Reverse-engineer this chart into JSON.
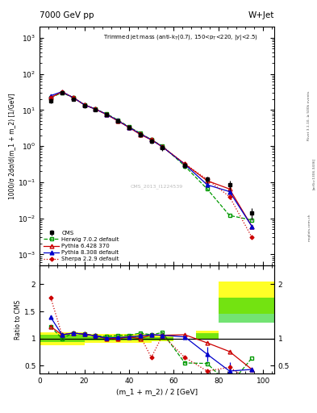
{
  "title_top": "7000 GeV pp",
  "title_right": "W+Jet",
  "annotation": "Trimmed jet mass (anti-k$_T$(0.7), 150<p$_T$<220, |y|<2.5)",
  "cms_label": "CMS_2013_I1224539",
  "rivet_label": "Rivet 3.1.10, ≥ 500k events",
  "arxiv_label": "[arXiv:1306.3436]",
  "mcplots_label": "mcplots.cern.ch",
  "ylabel_main": "1000/σ 2dσ/d(m_1 + m_2) [1/GeV]",
  "ylabel_ratio": "Ratio to CMS",
  "xlabel": "(m_1 + m_2) / 2 [GeV]",
  "xlim": [
    0,
    105
  ],
  "ylim_main": [
    0.0005,
    2000.0
  ],
  "ylim_ratio": [
    0.35,
    2.35
  ],
  "x_cms": [
    5,
    10,
    15,
    20,
    25,
    30,
    35,
    40,
    45,
    50,
    55,
    65,
    75,
    85,
    95
  ],
  "y_cms": [
    18,
    30,
    20,
    13,
    10,
    7.5,
    5.0,
    3.2,
    2.1,
    1.4,
    0.9,
    0.3,
    0.12,
    0.085,
    0.014
  ],
  "y_cms_errlo": [
    2.5,
    3.5,
    2.5,
    1.5,
    1.0,
    0.9,
    0.6,
    0.4,
    0.3,
    0.2,
    0.15,
    0.06,
    0.025,
    0.025,
    0.005
  ],
  "y_cms_errhi": [
    2.5,
    3.5,
    2.5,
    1.5,
    1.0,
    0.9,
    0.6,
    0.4,
    0.3,
    0.2,
    0.15,
    0.06,
    0.025,
    0.025,
    0.005
  ],
  "x_herwig": [
    5,
    10,
    15,
    20,
    25,
    30,
    35,
    40,
    45,
    50,
    55,
    65,
    75,
    85,
    95
  ],
  "y_herwig": [
    22,
    30,
    22,
    14,
    10.5,
    7.8,
    5.3,
    3.4,
    2.3,
    1.5,
    1.0,
    0.28,
    0.065,
    0.012,
    0.009
  ],
  "x_pythia6": [
    5,
    10,
    15,
    20,
    25,
    30,
    35,
    40,
    45,
    50,
    55,
    65,
    75,
    85,
    95
  ],
  "y_pythia6": [
    22,
    32,
    22,
    14,
    10.5,
    7.5,
    5.0,
    3.3,
    2.1,
    1.5,
    0.95,
    0.32,
    0.11,
    0.065,
    0.006
  ],
  "x_pythia8": [
    5,
    10,
    15,
    20,
    25,
    30,
    35,
    40,
    45,
    50,
    55,
    65,
    75,
    85,
    95
  ],
  "y_pythia8": [
    25,
    32,
    22,
    14,
    10.5,
    7.6,
    5.1,
    3.3,
    2.2,
    1.5,
    0.95,
    0.31,
    0.085,
    0.055,
    0.006
  ],
  "x_sherpa": [
    5,
    10,
    15,
    20,
    25,
    30,
    35,
    40,
    45,
    50,
    55,
    65,
    75,
    85,
    95
  ],
  "y_sherpa": [
    22,
    32,
    22,
    14,
    10.5,
    7.5,
    5.0,
    3.3,
    2.2,
    1.5,
    0.95,
    0.32,
    0.12,
    0.04,
    0.003
  ],
  "ratio_herwig": [
    1.22,
    1.0,
    1.1,
    1.08,
    1.05,
    1.04,
    1.06,
    1.06,
    1.1,
    1.07,
    1.11,
    0.55,
    0.54,
    0.14,
    0.64
  ],
  "ratio_pythia6": [
    1.22,
    1.07,
    1.1,
    1.08,
    1.05,
    1.0,
    1.0,
    1.03,
    1.0,
    1.07,
    1.06,
    1.07,
    0.92,
    0.76,
    0.43
  ],
  "ratio_pythia8": [
    1.39,
    1.07,
    1.1,
    1.08,
    1.05,
    1.01,
    1.02,
    1.03,
    1.05,
    1.07,
    1.06,
    1.03,
    0.71,
    0.4,
    0.43
  ],
  "ratio_sherpa": [
    1.75,
    1.07,
    1.1,
    1.08,
    1.05,
    1.0,
    1.0,
    1.03,
    1.05,
    0.65,
    1.06,
    0.65,
    0.4,
    0.47,
    0.21
  ],
  "ratio_err_pythia8_lo": [
    0,
    0,
    0,
    0,
    0,
    0,
    0,
    0,
    0,
    0,
    0,
    0,
    0.13,
    0.17,
    0
  ],
  "ratio_err_pythia8_hi": [
    0,
    0,
    0,
    0,
    0,
    0,
    0,
    0,
    0,
    0,
    0,
    0,
    0.13,
    0.17,
    0
  ],
  "cms_color": "#000000",
  "herwig_color": "#009900",
  "pythia6_color": "#cc0000",
  "pythia8_color": "#0000cc",
  "sherpa_color": "#cc0000",
  "band_yellow_bins": [
    [
      0,
      10
    ],
    [
      10,
      20
    ],
    [
      20,
      30
    ],
    [
      30,
      40
    ],
    [
      40,
      50
    ],
    [
      50,
      60
    ],
    [
      60,
      70
    ],
    [
      70,
      80
    ],
    [
      80,
      90
    ],
    [
      90,
      105
    ]
  ],
  "band_yellow_lo": [
    0.88,
    0.88,
    0.92,
    0.92,
    0.92,
    0.95,
    1.0,
    1.15,
    1.45,
    1.45
  ],
  "band_yellow_hi": [
    1.12,
    1.12,
    1.08,
    1.08,
    1.08,
    1.05,
    1.0,
    1.0,
    2.05,
    2.05
  ],
  "band_green_bins": [
    [
      0,
      10
    ],
    [
      10,
      20
    ],
    [
      20,
      30
    ],
    [
      30,
      40
    ],
    [
      40,
      50
    ],
    [
      50,
      60
    ],
    [
      60,
      70
    ],
    [
      70,
      80
    ],
    [
      80,
      90
    ],
    [
      90,
      105
    ]
  ],
  "band_green_lo": [
    0.93,
    0.93,
    0.96,
    0.96,
    0.96,
    0.97,
    1.0,
    1.1,
    1.3,
    1.3
  ],
  "band_green_hi": [
    1.07,
    1.07,
    1.04,
    1.04,
    1.04,
    1.03,
    1.0,
    1.0,
    1.75,
    1.75
  ]
}
